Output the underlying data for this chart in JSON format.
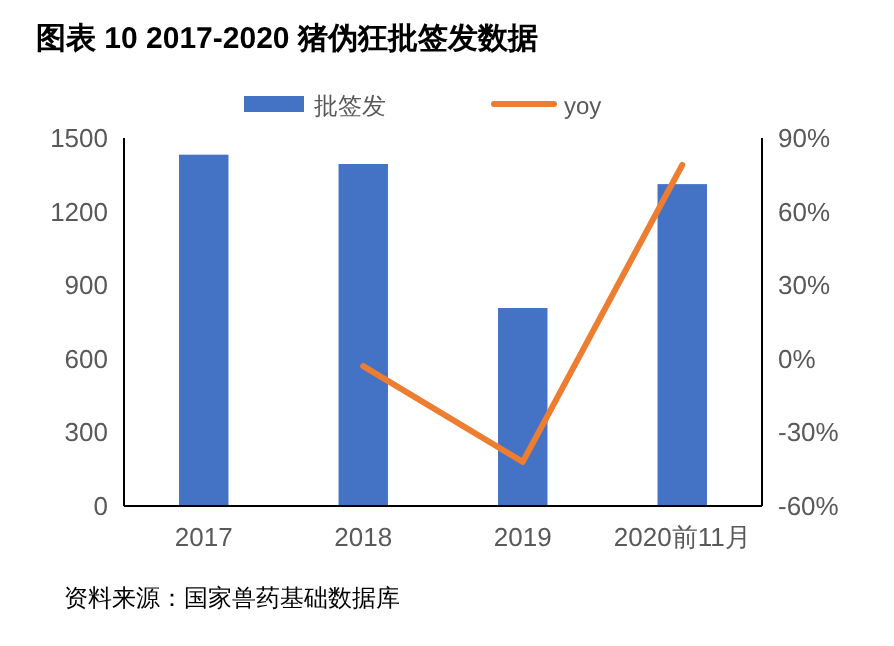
{
  "chart_data": {
    "type": "bar",
    "title": "图表 10 2017-2020 猪伪狂批签发数据",
    "categories": [
      "2017",
      "2018",
      "2019",
      "2020前11月"
    ],
    "series": [
      {
        "name": "批签发",
        "color": "#4472c4",
        "values": [
          1432,
          1394,
          807,
          1312
        ]
      },
      {
        "name": "yoy",
        "type": "line",
        "axis": "y2",
        "color": "#ed7d31",
        "values": [
          null,
          -3,
          -42,
          79
        ]
      }
    ],
    "ylim": [
      0,
      1500
    ],
    "yticks": [
      0,
      300,
      600,
      900,
      1200,
      1500
    ],
    "y2lim": [
      -60,
      90
    ],
    "y2ticks": [
      {
        "value": -60,
        "label": "-60%"
      },
      {
        "value": -30,
        "label": "-30%"
      },
      {
        "value": 0,
        "label": "0%"
      },
      {
        "value": 30,
        "label": "30%"
      },
      {
        "value": 60,
        "label": "60%"
      },
      {
        "value": 90,
        "label": "90%"
      }
    ],
    "grid": false,
    "legend": "top",
    "annotations": [
      "资料来源：国家兽药基础数据库"
    ]
  }
}
